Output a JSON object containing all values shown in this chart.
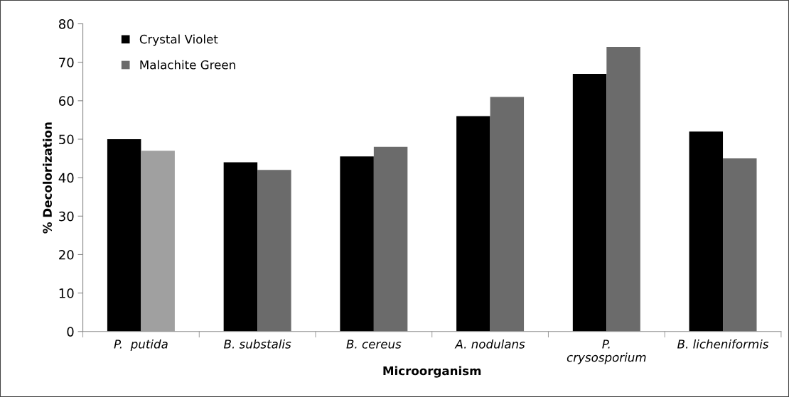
{
  "chart_data": {
    "type": "bar",
    "xlabel": "Microorganism",
    "ylabel": "% Decolorization",
    "categories": [
      "P.  putida",
      "B. substalis",
      "B. cereus",
      "A. nodulans",
      "P.\ncrysosporium",
      "B. licheniformis"
    ],
    "series": [
      {
        "name": "Crystal Violet",
        "color": "#000000",
        "values": [
          50,
          44,
          45.5,
          56,
          67,
          52
        ]
      },
      {
        "name": "Malachite Green",
        "color": "#6b6b6b",
        "colors": [
          "#a0a0a0",
          "#6b6b6b",
          "#6b6b6b",
          "#6b6b6b",
          "#6b6b6b",
          "#6b6b6b"
        ],
        "values": [
          47,
          42,
          48,
          61,
          74,
          45
        ]
      }
    ],
    "ylim": [
      0,
      80
    ],
    "yticks": [
      0,
      10,
      20,
      30,
      40,
      50,
      60,
      70,
      80
    ],
    "grid": false,
    "legend": "top left"
  }
}
